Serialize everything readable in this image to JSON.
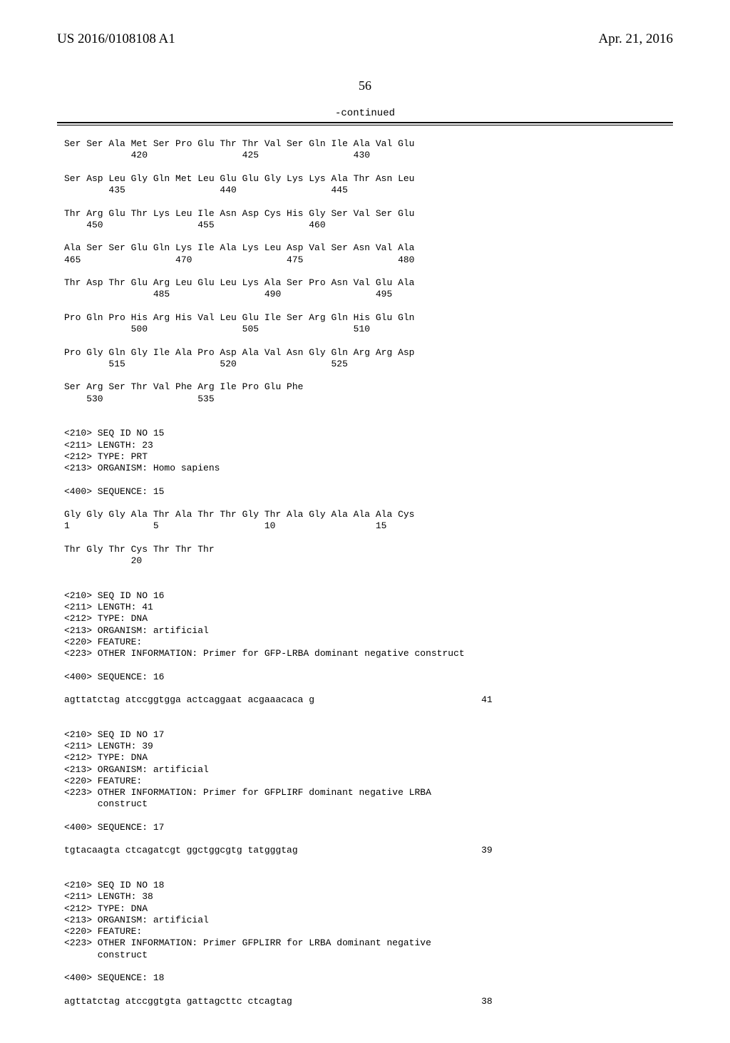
{
  "header": {
    "pub_number": "US 2016/0108108 A1",
    "pub_date": "Apr. 21, 2016"
  },
  "page_number": "56",
  "continued_label": "-continued",
  "seq_rows": [
    {
      "aa": "Ser Ser Ala Met Ser Pro Glu Thr Thr Val Ser Gln Ile Ala Val Glu",
      "nums": "            420                 425                 430"
    },
    {
      "aa": "Ser Asp Leu Gly Gln Met Leu Glu Glu Gly Lys Lys Ala Thr Asn Leu",
      "nums": "        435                 440                 445"
    },
    {
      "aa": "Thr Arg Glu Thr Lys Leu Ile Asn Asp Cys His Gly Ser Val Ser Glu",
      "nums": "    450                 455                 460"
    },
    {
      "aa": "Ala Ser Ser Glu Gln Lys Ile Ala Lys Leu Asp Val Ser Asn Val Ala",
      "nums": "465                 470                 475                 480"
    },
    {
      "aa": "Thr Asp Thr Glu Arg Leu Glu Leu Lys Ala Ser Pro Asn Val Glu Ala",
      "nums": "                485                 490                 495"
    },
    {
      "aa": "Pro Gln Pro His Arg His Val Leu Glu Ile Ser Arg Gln His Glu Gln",
      "nums": "            500                 505                 510"
    },
    {
      "aa": "Pro Gly Gln Gly Ile Ala Pro Asp Ala Val Asn Gly Gln Arg Arg Asp",
      "nums": "        515                 520                 525"
    },
    {
      "aa": "Ser Arg Ser Thr Val Phe Arg Ile Pro Glu Phe",
      "nums": "    530                 535"
    }
  ],
  "block15": {
    "lines": [
      "<210> SEQ ID NO 15",
      "<211> LENGTH: 23",
      "<212> TYPE: PRT",
      "<213> ORGANISM: Homo sapiens",
      "",
      "<400> SEQUENCE: 15"
    ],
    "aa1": "Gly Gly Gly Ala Thr Ala Thr Thr Gly Thr Ala Gly Ala Ala Ala Cys",
    "nums1": "1               5                   10                  15",
    "aa2": "Thr Gly Thr Cys Thr Thr Thr",
    "nums2": "            20"
  },
  "block16": {
    "lines": [
      "<210> SEQ ID NO 16",
      "<211> LENGTH: 41",
      "<212> TYPE: DNA",
      "<213> ORGANISM: artificial",
      "<220> FEATURE:",
      "<223> OTHER INFORMATION: Primer for GFP-LRBA dominant negative construct",
      "",
      "<400> SEQUENCE: 16"
    ],
    "seq": "agttatctag atccggtgga actcaggaat acgaaacaca g                              41"
  },
  "block17": {
    "lines": [
      "<210> SEQ ID NO 17",
      "<211> LENGTH: 39",
      "<212> TYPE: DNA",
      "<213> ORGANISM: artificial",
      "<220> FEATURE:",
      "<223> OTHER INFORMATION: Primer for GFPLIRF dominant negative LRBA",
      "      construct",
      "",
      "<400> SEQUENCE: 17"
    ],
    "seq": "tgtacaagta ctcagatcgt ggctggcgtg tatgggtag                                 39"
  },
  "block18": {
    "lines": [
      "<210> SEQ ID NO 18",
      "<211> LENGTH: 38",
      "<212> TYPE: DNA",
      "<213> ORGANISM: artificial",
      "<220> FEATURE:",
      "<223> OTHER INFORMATION: Primer GFPLIRR for LRBA dominant negative",
      "      construct",
      "",
      "<400> SEQUENCE: 18"
    ],
    "seq": "agttatctag atccggtgta gattagcttc ctcagtag                                  38"
  }
}
